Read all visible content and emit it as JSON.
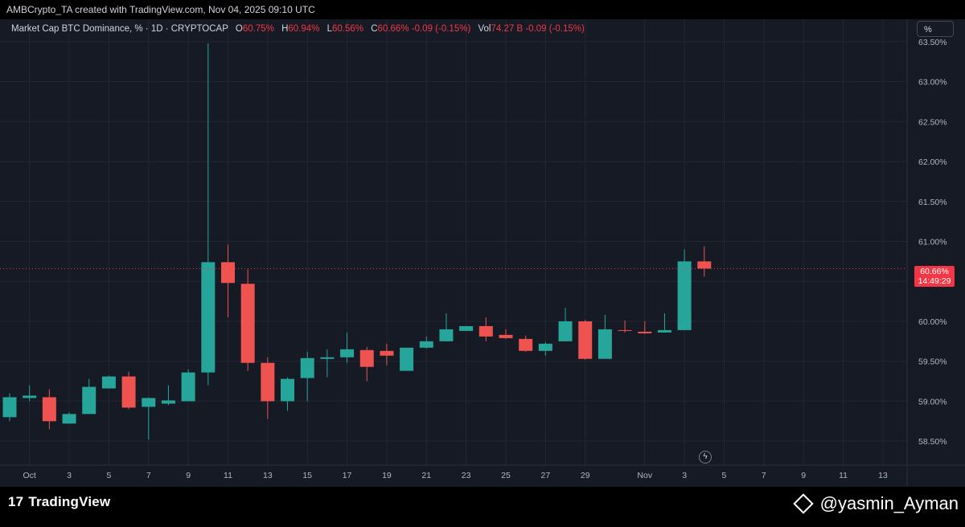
{
  "header": {
    "caption": "AMBCrypto_TA created with TradingView.com, Nov 04, 2025 09:10 UTC"
  },
  "legend": {
    "symbol": "Market Cap BTC Dominance, % · 1D · CRYPTOCAP",
    "o_label": "O",
    "o_value": "60.75%",
    "h_label": "H",
    "h_value": "60.94%",
    "l_label": "L",
    "l_value": "60.56%",
    "c_label": "C",
    "c_value": "60.66%",
    "change": "-0.09 (-0.15%)",
    "vol_label": "Vol",
    "vol_value": "74.27 B",
    "vol_change": "-0.09 (-0.15%)"
  },
  "scale_button": "%",
  "price_tag": {
    "value": "60.66%",
    "countdown": "14:49:29"
  },
  "branding": {
    "logo_text": "TradingView",
    "handle": "@yasmin_Ayman"
  },
  "chart_data": {
    "type": "candlestick",
    "title": "Market Cap BTC Dominance, % · 1D · CRYPTOCAP",
    "ylim": [
      58.2,
      63.7
    ],
    "yticks": [
      "58.50%",
      "59.00%",
      "59.50%",
      "60.00%",
      "60.50%",
      "61.00%",
      "61.50%",
      "62.00%",
      "62.50%",
      "63.00%",
      "63.50%"
    ],
    "yticks_values": [
      58.5,
      59.0,
      59.5,
      60.0,
      60.5,
      61.0,
      61.5,
      62.0,
      62.5,
      63.0,
      63.5
    ],
    "xticks": [
      "Oct",
      "3",
      "5",
      "7",
      "9",
      "11",
      "13",
      "15",
      "17",
      "19",
      "21",
      "23",
      "25",
      "27",
      "29",
      "Nov",
      "3",
      "5",
      "7",
      "9",
      "11",
      "13"
    ],
    "xticks_day_index": [
      0,
      2,
      4,
      6,
      8,
      10,
      12,
      14,
      16,
      18,
      20,
      22,
      24,
      26,
      28,
      31,
      33,
      35,
      37,
      39,
      41,
      43
    ],
    "candles": [
      {
        "d": "Sep 30",
        "o": 58.8,
        "h": 59.1,
        "l": 58.75,
        "c": 59.05
      },
      {
        "d": "Oct 1",
        "o": 59.04,
        "h": 59.2,
        "l": 59.0,
        "c": 59.07
      },
      {
        "d": "Oct 2",
        "o": 59.05,
        "h": 59.15,
        "l": 58.65,
        "c": 58.75
      },
      {
        "d": "Oct 3",
        "o": 58.72,
        "h": 58.86,
        "l": 58.72,
        "c": 58.84
      },
      {
        "d": "Oct 4",
        "o": 58.84,
        "h": 59.28,
        "l": 58.84,
        "c": 59.18
      },
      {
        "d": "Oct 5",
        "o": 59.16,
        "h": 59.32,
        "l": 59.16,
        "c": 59.31
      },
      {
        "d": "Oct 6",
        "o": 59.31,
        "h": 59.37,
        "l": 58.9,
        "c": 58.92
      },
      {
        "d": "Oct 7",
        "o": 58.93,
        "h": 59.05,
        "l": 58.52,
        "c": 59.04
      },
      {
        "d": "Oct 8",
        "o": 58.97,
        "h": 59.2,
        "l": 58.95,
        "c": 59.01
      },
      {
        "d": "Oct 9",
        "o": 59.0,
        "h": 59.4,
        "l": 59.0,
        "c": 59.36
      },
      {
        "d": "Oct 10",
        "o": 59.36,
        "h": 63.48,
        "l": 59.2,
        "c": 60.74
      },
      {
        "d": "Oct 11",
        "o": 60.74,
        "h": 60.96,
        "l": 60.05,
        "c": 60.48
      },
      {
        "d": "Oct 12",
        "o": 60.47,
        "h": 60.65,
        "l": 59.38,
        "c": 59.48
      },
      {
        "d": "Oct 13",
        "o": 59.48,
        "h": 59.55,
        "l": 58.78,
        "c": 59.0
      },
      {
        "d": "Oct 14",
        "o": 59.0,
        "h": 59.3,
        "l": 58.88,
        "c": 59.28
      },
      {
        "d": "Oct 15",
        "o": 59.29,
        "h": 59.62,
        "l": 59.0,
        "c": 59.54
      },
      {
        "d": "Oct 16",
        "o": 59.53,
        "h": 59.65,
        "l": 59.3,
        "c": 59.55
      },
      {
        "d": "Oct 17",
        "o": 59.55,
        "h": 59.86,
        "l": 59.48,
        "c": 59.65
      },
      {
        "d": "Oct 18",
        "o": 59.64,
        "h": 59.68,
        "l": 59.25,
        "c": 59.43
      },
      {
        "d": "Oct 19",
        "o": 59.63,
        "h": 59.72,
        "l": 59.45,
        "c": 59.57
      },
      {
        "d": "Oct 20",
        "o": 59.38,
        "h": 59.67,
        "l": 59.38,
        "c": 59.67
      },
      {
        "d": "Oct 21",
        "o": 59.67,
        "h": 59.81,
        "l": 59.66,
        "c": 59.75
      },
      {
        "d": "Oct 22",
        "o": 59.75,
        "h": 60.1,
        "l": 59.75,
        "c": 59.9
      },
      {
        "d": "Oct 23",
        "o": 59.88,
        "h": 59.94,
        "l": 59.88,
        "c": 59.94
      },
      {
        "d": "Oct 24",
        "o": 59.94,
        "h": 60.05,
        "l": 59.75,
        "c": 59.81
      },
      {
        "d": "Oct 25",
        "o": 59.83,
        "h": 59.9,
        "l": 59.78,
        "c": 59.79
      },
      {
        "d": "Oct 26",
        "o": 59.78,
        "h": 59.82,
        "l": 59.62,
        "c": 59.63
      },
      {
        "d": "Oct 27",
        "o": 59.63,
        "h": 59.74,
        "l": 59.57,
        "c": 59.72
      },
      {
        "d": "Oct 28",
        "o": 59.75,
        "h": 60.17,
        "l": 59.75,
        "c": 60.0
      },
      {
        "d": "Oct 29",
        "o": 60.0,
        "h": 60.02,
        "l": 59.52,
        "c": 59.53
      },
      {
        "d": "Oct 30",
        "o": 59.53,
        "h": 60.08,
        "l": 59.53,
        "c": 59.9
      },
      {
        "d": "Oct 31",
        "o": 59.89,
        "h": 60.01,
        "l": 59.86,
        "c": 59.88
      },
      {
        "d": "Nov 1",
        "o": 59.87,
        "h": 60.0,
        "l": 59.84,
        "c": 59.85
      },
      {
        "d": "Nov 2",
        "o": 59.86,
        "h": 60.1,
        "l": 59.86,
        "c": 59.89
      },
      {
        "d": "Nov 3",
        "o": 59.89,
        "h": 60.9,
        "l": 59.89,
        "c": 60.75
      },
      {
        "d": "Nov 4",
        "o": 60.75,
        "h": 60.94,
        "l": 60.56,
        "c": 60.66
      }
    ],
    "grid": true,
    "up_color": "#26a69a",
    "down_color": "#ef5350",
    "background": "#161a25"
  }
}
